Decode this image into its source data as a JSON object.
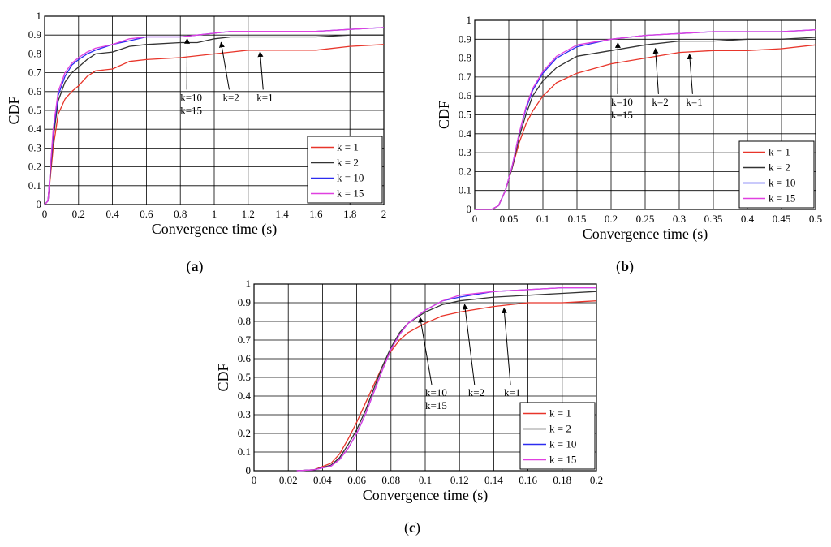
{
  "figure": {
    "panel_labels": [
      "(a)",
      "(b)",
      "(c)"
    ]
  },
  "colors": {
    "k1": "#e8352a",
    "k2": "#333333",
    "k10": "#2c2cf0",
    "k15": "#e040e0"
  },
  "chart_data": [
    {
      "type": "line",
      "panel": "(a)",
      "xlabel": "Convergence time (s)",
      "ylabel": "CDF",
      "xlim": [
        0,
        2
      ],
      "ylim": [
        0,
        1
      ],
      "xticks": [
        0,
        0.2,
        0.4,
        0.6,
        0.8,
        1,
        1.2,
        1.4,
        1.6,
        1.8,
        2
      ],
      "xtick_labels": [
        "0",
        "0.2",
        "0.4",
        "0.6",
        "0.8",
        "1",
        "1.2",
        "1.4",
        "1.6",
        "1.8",
        "2"
      ],
      "yticks": [
        0,
        0.1,
        0.2,
        0.3,
        0.4,
        0.5,
        0.6,
        0.7,
        0.8,
        0.9,
        1
      ],
      "ytick_labels": [
        "0",
        "0.1",
        "0.2",
        "0.3",
        "0.4",
        "0.5",
        "0.6",
        "0.7",
        "0.8",
        "0.9",
        "1"
      ],
      "grid": true,
      "legend": "bottom-right",
      "series": [
        {
          "name": "k = 1",
          "color": "#e8352a",
          "x": [
            0,
            0.02,
            0.05,
            0.08,
            0.12,
            0.16,
            0.2,
            0.25,
            0.3,
            0.4,
            0.5,
            0.6,
            0.8,
            1.0,
            1.1,
            1.2,
            1.4,
            1.6,
            1.8,
            2.0
          ],
          "y": [
            0,
            0.02,
            0.3,
            0.48,
            0.56,
            0.6,
            0.63,
            0.68,
            0.71,
            0.72,
            0.76,
            0.77,
            0.78,
            0.8,
            0.81,
            0.82,
            0.82,
            0.82,
            0.84,
            0.85
          ]
        },
        {
          "name": "k = 2",
          "color": "#333333",
          "x": [
            0,
            0.02,
            0.05,
            0.08,
            0.12,
            0.16,
            0.2,
            0.25,
            0.3,
            0.4,
            0.5,
            0.6,
            0.8,
            0.9,
            1.0,
            1.1,
            1.2,
            1.4,
            1.6,
            1.8,
            2.0
          ],
          "y": [
            0,
            0.02,
            0.35,
            0.55,
            0.65,
            0.7,
            0.73,
            0.77,
            0.8,
            0.81,
            0.84,
            0.85,
            0.86,
            0.86,
            0.88,
            0.89,
            0.89,
            0.89,
            0.89,
            0.9,
            0.9
          ]
        },
        {
          "name": "k = 10",
          "color": "#2c2cf0",
          "x": [
            0,
            0.02,
            0.05,
            0.08,
            0.12,
            0.16,
            0.2,
            0.25,
            0.3,
            0.4,
            0.5,
            0.6,
            0.8,
            0.9,
            1.0,
            1.1,
            1.2,
            1.4,
            1.6,
            1.8,
            2.0
          ],
          "y": [
            0,
            0.02,
            0.38,
            0.58,
            0.68,
            0.74,
            0.77,
            0.8,
            0.82,
            0.85,
            0.87,
            0.89,
            0.89,
            0.9,
            0.91,
            0.92,
            0.92,
            0.92,
            0.92,
            0.93,
            0.94
          ]
        },
        {
          "name": "k = 15",
          "color": "#e040e0",
          "x": [
            0,
            0.02,
            0.05,
            0.08,
            0.12,
            0.16,
            0.2,
            0.25,
            0.3,
            0.4,
            0.5,
            0.6,
            0.8,
            0.9,
            1.0,
            1.1,
            1.2,
            1.4,
            1.6,
            1.8,
            2.0
          ],
          "y": [
            0,
            0.02,
            0.4,
            0.6,
            0.7,
            0.75,
            0.78,
            0.81,
            0.83,
            0.85,
            0.88,
            0.89,
            0.89,
            0.9,
            0.91,
            0.92,
            0.92,
            0.92,
            0.92,
            0.93,
            0.94
          ]
        }
      ],
      "annotations": [
        {
          "lines": [
            "k=10",
            "k=15"
          ],
          "tx": 0.8,
          "ty": 0.55,
          "ax": 0.84,
          "ay": 0.89
        },
        {
          "lines": [
            "k=2"
          ],
          "tx": 1.05,
          "ty": 0.55,
          "ax": 1.04,
          "ay": 0.87
        },
        {
          "lines": [
            "k=1"
          ],
          "tx": 1.25,
          "ty": 0.55,
          "ax": 1.27,
          "ay": 0.82
        }
      ]
    },
    {
      "type": "line",
      "panel": "(b)",
      "xlabel": "Convergence time (s)",
      "ylabel": "CDF",
      "xlim": [
        0,
        0.5
      ],
      "ylim": [
        0,
        1
      ],
      "xticks": [
        0,
        0.05,
        0.1,
        0.15,
        0.2,
        0.25,
        0.3,
        0.35,
        0.4,
        0.45,
        0.5
      ],
      "xtick_labels": [
        "0",
        "0.05",
        "0.1",
        "0.15",
        "0.2",
        "0.25",
        "0.3",
        "0.35",
        "0.4",
        "0.45",
        "0.5"
      ],
      "yticks": [
        0,
        0.1,
        0.2,
        0.3,
        0.4,
        0.5,
        0.6,
        0.7,
        0.8,
        0.9,
        1
      ],
      "ytick_labels": [
        "0",
        "0.1",
        "0.2",
        "0.3",
        "0.4",
        "0.5",
        "0.6",
        "0.7",
        "0.8",
        "0.9",
        "1"
      ],
      "grid": true,
      "legend": "bottom-right",
      "series": [
        {
          "name": "k = 1",
          "color": "#e8352a",
          "x": [
            0,
            0.025,
            0.035,
            0.045,
            0.055,
            0.065,
            0.075,
            0.085,
            0.1,
            0.12,
            0.15,
            0.2,
            0.25,
            0.3,
            0.35,
            0.4,
            0.45,
            0.5
          ],
          "y": [
            0,
            0,
            0.02,
            0.1,
            0.22,
            0.35,
            0.45,
            0.52,
            0.6,
            0.67,
            0.72,
            0.77,
            0.8,
            0.83,
            0.84,
            0.84,
            0.85,
            0.87
          ]
        },
        {
          "name": "k = 2",
          "color": "#333333",
          "x": [
            0,
            0.025,
            0.035,
            0.045,
            0.055,
            0.065,
            0.075,
            0.085,
            0.1,
            0.12,
            0.15,
            0.2,
            0.25,
            0.3,
            0.35,
            0.4,
            0.45,
            0.5
          ],
          "y": [
            0,
            0,
            0.02,
            0.1,
            0.22,
            0.38,
            0.5,
            0.6,
            0.68,
            0.75,
            0.81,
            0.84,
            0.87,
            0.89,
            0.89,
            0.9,
            0.9,
            0.91
          ]
        },
        {
          "name": "k = 10",
          "color": "#2c2cf0",
          "x": [
            0,
            0.025,
            0.035,
            0.045,
            0.055,
            0.065,
            0.075,
            0.085,
            0.1,
            0.12,
            0.15,
            0.2,
            0.25,
            0.3,
            0.35,
            0.4,
            0.45,
            0.5
          ],
          "y": [
            0,
            0,
            0.02,
            0.1,
            0.23,
            0.4,
            0.53,
            0.63,
            0.72,
            0.8,
            0.86,
            0.9,
            0.92,
            0.93,
            0.94,
            0.94,
            0.94,
            0.95
          ]
        },
        {
          "name": "k = 15",
          "color": "#e040e0",
          "x": [
            0,
            0.025,
            0.035,
            0.045,
            0.055,
            0.065,
            0.075,
            0.085,
            0.1,
            0.12,
            0.15,
            0.2,
            0.25,
            0.3,
            0.35,
            0.4,
            0.45,
            0.5
          ],
          "y": [
            0,
            0,
            0.02,
            0.1,
            0.23,
            0.4,
            0.54,
            0.64,
            0.73,
            0.81,
            0.87,
            0.9,
            0.92,
            0.93,
            0.94,
            0.94,
            0.94,
            0.95
          ]
        }
      ],
      "annotations": [
        {
          "lines": [
            "k=10",
            "k=15"
          ],
          "tx": 0.2,
          "ty": 0.55,
          "ax": 0.21,
          "ay": 0.89
        },
        {
          "lines": [
            "k=2"
          ],
          "tx": 0.26,
          "ty": 0.55,
          "ax": 0.265,
          "ay": 0.86
        },
        {
          "lines": [
            "k=1"
          ],
          "tx": 0.31,
          "ty": 0.55,
          "ax": 0.315,
          "ay": 0.83
        }
      ]
    },
    {
      "type": "line",
      "panel": "(c)",
      "xlabel": "Convergence time (s)",
      "ylabel": "CDF",
      "xlim": [
        0,
        0.2
      ],
      "ylim": [
        0,
        1
      ],
      "xticks": [
        0,
        0.02,
        0.04,
        0.06,
        0.08,
        0.1,
        0.12,
        0.14,
        0.16,
        0.18,
        0.2
      ],
      "xtick_labels": [
        "0",
        "0.02",
        "0.04",
        "0.06",
        "0.08",
        "0.1",
        "0.12",
        "0.14",
        "0.16",
        "0.18",
        "0.2"
      ],
      "yticks": [
        0,
        0.1,
        0.2,
        0.3,
        0.4,
        0.5,
        0.6,
        0.7,
        0.8,
        0.9,
        1
      ],
      "ytick_labels": [
        "0",
        "0.1",
        "0.2",
        "0.3",
        "0.4",
        "0.5",
        "0.6",
        "0.7",
        "0.8",
        "0.9",
        "1"
      ],
      "grid": true,
      "legend": "bottom-right",
      "series": [
        {
          "name": "k = 1",
          "color": "#e8352a",
          "x": [
            0.025,
            0.035,
            0.045,
            0.05,
            0.055,
            0.06,
            0.065,
            0.07,
            0.075,
            0.08,
            0.085,
            0.09,
            0.1,
            0.11,
            0.12,
            0.14,
            0.16,
            0.18,
            0.2
          ],
          "y": [
            0,
            0.005,
            0.04,
            0.09,
            0.17,
            0.26,
            0.36,
            0.46,
            0.56,
            0.64,
            0.7,
            0.74,
            0.79,
            0.83,
            0.85,
            0.88,
            0.9,
            0.9,
            0.91
          ]
        },
        {
          "name": "k = 2",
          "color": "#333333",
          "x": [
            0.025,
            0.035,
            0.045,
            0.05,
            0.055,
            0.06,
            0.065,
            0.07,
            0.075,
            0.08,
            0.085,
            0.09,
            0.1,
            0.11,
            0.12,
            0.14,
            0.16,
            0.18,
            0.2
          ],
          "y": [
            0,
            0.005,
            0.03,
            0.07,
            0.14,
            0.22,
            0.32,
            0.44,
            0.56,
            0.66,
            0.74,
            0.79,
            0.85,
            0.89,
            0.91,
            0.93,
            0.94,
            0.95,
            0.96
          ]
        },
        {
          "name": "k = 10",
          "color": "#2c2cf0",
          "x": [
            0.025,
            0.035,
            0.045,
            0.05,
            0.055,
            0.06,
            0.065,
            0.07,
            0.075,
            0.08,
            0.085,
            0.09,
            0.1,
            0.11,
            0.12,
            0.14,
            0.16,
            0.18,
            0.2
          ],
          "y": [
            0,
            0.005,
            0.025,
            0.06,
            0.12,
            0.2,
            0.3,
            0.42,
            0.54,
            0.65,
            0.73,
            0.79,
            0.86,
            0.91,
            0.93,
            0.96,
            0.97,
            0.98,
            0.98
          ]
        },
        {
          "name": "k = 15",
          "color": "#e040e0",
          "x": [
            0.025,
            0.035,
            0.045,
            0.05,
            0.055,
            0.06,
            0.065,
            0.07,
            0.075,
            0.08,
            0.085,
            0.09,
            0.1,
            0.11,
            0.12,
            0.14,
            0.16,
            0.18,
            0.2
          ],
          "y": [
            0,
            0.005,
            0.025,
            0.06,
            0.12,
            0.2,
            0.3,
            0.42,
            0.54,
            0.65,
            0.73,
            0.79,
            0.86,
            0.91,
            0.94,
            0.96,
            0.97,
            0.98,
            0.98
          ]
        }
      ],
      "annotations": [
        {
          "lines": [
            "k=10",
            "k=15"
          ],
          "tx": 0.1,
          "ty": 0.4,
          "ax": 0.097,
          "ay": 0.83
        },
        {
          "lines": [
            "k=2"
          ],
          "tx": 0.125,
          "ty": 0.4,
          "ax": 0.123,
          "ay": 0.9
        },
        {
          "lines": [
            "k=1"
          ],
          "tx": 0.146,
          "ty": 0.4,
          "ax": 0.146,
          "ay": 0.88
        }
      ]
    }
  ]
}
